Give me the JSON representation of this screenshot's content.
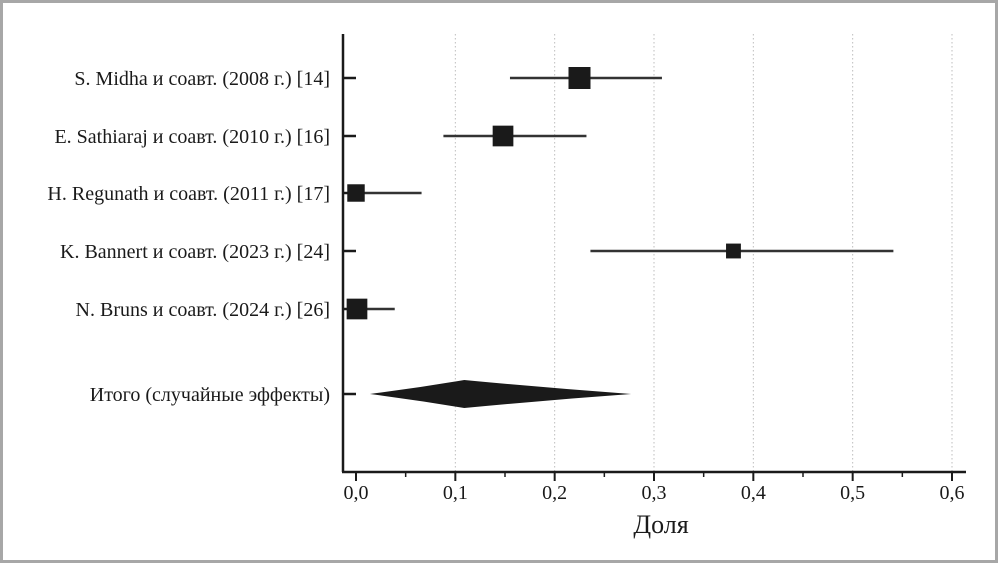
{
  "chart_data": {
    "type": "forest",
    "xlabel": "Доля",
    "xlim": [
      0.0,
      0.6
    ],
    "xticks": [
      "0,0",
      "0,1",
      "0,2",
      "0,3",
      "0,4",
      "0,5",
      "0,6"
    ],
    "xtick_values": [
      0.0,
      0.1,
      0.2,
      0.3,
      0.4,
      0.5,
      0.6
    ],
    "grid": "vertical-dotted",
    "studies": [
      {
        "label": "S. Midha и соавт. (2008 г.) [14]",
        "estimate": 0.225,
        "ci_low": 0.155,
        "ci_high": 0.308,
        "weight": 1.0
      },
      {
        "label": "E. Sathiaraj и соавт. (2010 г.) [16]",
        "estimate": 0.148,
        "ci_low": 0.088,
        "ci_high": 0.232,
        "weight": 0.9
      },
      {
        "label": "H. Regunath и соавт. (2011 г.) [17]",
        "estimate": 0.0,
        "ci_low": 0.0,
        "ci_high": 0.066,
        "weight": 0.65
      },
      {
        "label": "K. Bannert и соавт. (2023 г.) [24]",
        "estimate": 0.38,
        "ci_low": 0.236,
        "ci_high": 0.541,
        "weight": 0.45
      },
      {
        "label": "N. Bruns и соавт. (2024 г.) [26]",
        "estimate": 0.001,
        "ci_low": 0.0,
        "ci_high": 0.039,
        "weight": 0.9
      }
    ],
    "summary": {
      "label": "Итого (случайные эффекты)",
      "estimate": 0.109,
      "ci_low": 0.014,
      "ci_high": 0.277
    }
  }
}
